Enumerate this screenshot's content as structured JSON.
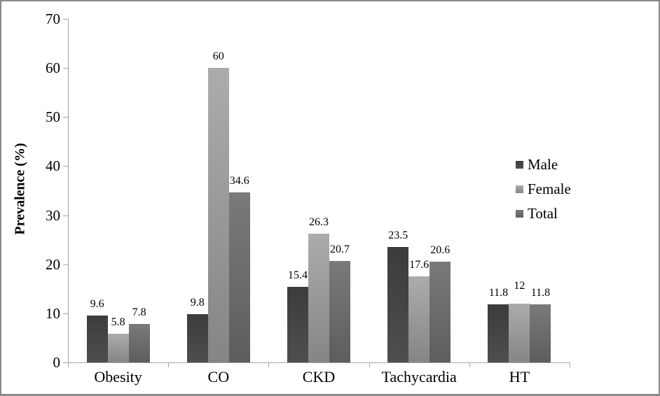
{
  "figure": {
    "background": "#ffffff",
    "border_color": "#898989",
    "axis_color": "#a6a6a6",
    "text_color": "#000000"
  },
  "chart_data": {
    "type": "bar",
    "title": "",
    "xlabel": "",
    "ylabel": "Prevalence (%)",
    "categories": [
      "Obesity",
      "CO",
      "CKD",
      "Tachycardia",
      "HT"
    ],
    "series": [
      {
        "name": "Male",
        "values": [
          9.6,
          9.8,
          15.4,
          23.5,
          11.8
        ],
        "labels": [
          "9.6",
          "9.8",
          "15.4",
          "23.5",
          "11.8"
        ],
        "color": "#404040",
        "color_top": "#3c3c3c",
        "color_bottom": "#4e4e4e"
      },
      {
        "name": "Female",
        "values": [
          5.8,
          60,
          26.3,
          17.6,
          12
        ],
        "labels": [
          "5.8",
          "60",
          "26.3",
          "17.6",
          "12"
        ],
        "color": "#a6a6a6",
        "color_top": "#acacac",
        "color_bottom": "#858585"
      },
      {
        "name": "Total",
        "values": [
          7.8,
          34.6,
          20.7,
          20.6,
          11.8
        ],
        "labels": [
          "7.8",
          "34.6",
          "20.7",
          "20.6",
          "11.8"
        ],
        "color": "#696969",
        "color_top": "#7a7a7a",
        "color_bottom": "#5d5d5d"
      }
    ],
    "ylim": [
      0,
      70
    ],
    "yticks": [
      0,
      10,
      20,
      30,
      40,
      50,
      60,
      70
    ],
    "grid": false,
    "legend_position": "right",
    "value_labels_shown": true
  }
}
